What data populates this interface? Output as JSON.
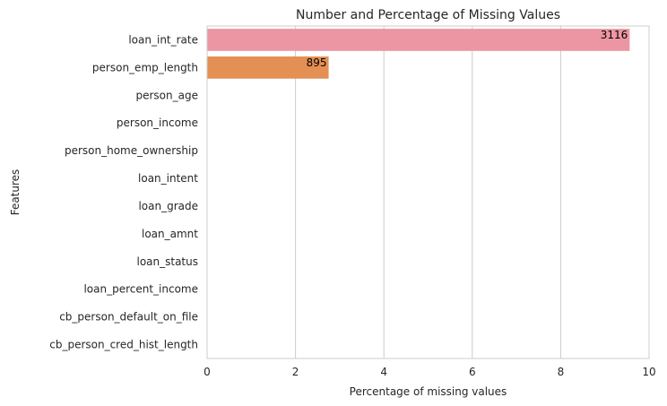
{
  "chart_data": {
    "type": "bar",
    "orientation": "horizontal",
    "title": "Number and Percentage of Missing Values",
    "xlabel": "Percentage of missing values",
    "ylabel": "Features",
    "xlim": [
      0,
      10
    ],
    "xticks": [
      "0",
      "2",
      "4",
      "6",
      "8",
      "10"
    ],
    "grid": "vertical",
    "categories": [
      "loan_int_rate",
      "person_emp_length",
      "person_age",
      "person_income",
      "person_home_ownership",
      "loan_intent",
      "loan_grade",
      "loan_amnt",
      "loan_status",
      "loan_percent_income",
      "cb_person_default_on_file",
      "cb_person_cred_hist_length"
    ],
    "values": [
      9.56,
      2.75,
      0,
      0,
      0,
      0,
      0,
      0,
      0,
      0,
      0,
      0
    ],
    "bar_labels": [
      "3116",
      "895",
      "",
      "",
      "",
      "",
      "",
      "",
      "",
      "",
      "",
      ""
    ],
    "colors": [
      "#ec96a4",
      "#e48f54"
    ]
  }
}
